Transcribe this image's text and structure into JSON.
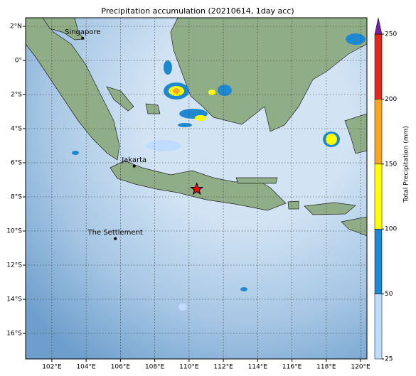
{
  "map": {
    "title": "Precipitation accumulation (20210614, 1day acc)",
    "xlim": [
      100.47,
      120.37
    ],
    "ylim": [
      -17.5,
      2.5
    ],
    "xticks": [
      {
        "value": 102,
        "label": "102°E"
      },
      {
        "value": 104,
        "label": "104°E"
      },
      {
        "value": 106,
        "label": "106°E"
      },
      {
        "value": 108,
        "label": "108°E"
      },
      {
        "value": 110,
        "label": "110°E"
      },
      {
        "value": 112,
        "label": "112°E"
      },
      {
        "value": 114,
        "label": "114°E"
      },
      {
        "value": 116,
        "label": "116°E"
      },
      {
        "value": 118,
        "label": "118°E"
      },
      {
        "value": 120,
        "label": "120°E"
      }
    ],
    "yticks": [
      {
        "value": 2,
        "label": "2°N"
      },
      {
        "value": 0,
        "label": "0°"
      },
      {
        "value": -2,
        "label": "2°S"
      },
      {
        "value": -4,
        "label": "4°S"
      },
      {
        "value": -6,
        "label": "6°S"
      },
      {
        "value": -8,
        "label": "8°S"
      },
      {
        "value": -10,
        "label": "10°S"
      },
      {
        "value": -12,
        "label": "12°S"
      },
      {
        "value": -14,
        "label": "14°S"
      },
      {
        "value": -16,
        "label": "16°S"
      }
    ],
    "places": [
      {
        "name": "Singapore",
        "lon": 103.8,
        "lat": 1.3
      },
      {
        "name": "Jakarta",
        "lon": 106.8,
        "lat": -6.2
      },
      {
        "name": "The Settlement",
        "lon": 105.7,
        "lat": -10.45
      }
    ],
    "marker": {
      "lon": 110.45,
      "lat": -7.55,
      "color": "#ff0000"
    },
    "colorbar": {
      "label": "Total Precipitation (mm)",
      "boundaries": [
        25,
        50,
        100,
        150,
        200,
        250
      ],
      "colors": [
        "#bfdcff",
        "#1e88d0",
        "#ffff00",
        "#f5a623",
        "#e0281e"
      ],
      "extend_color": "#7b1fa2",
      "ticks": [
        25,
        50,
        100,
        150,
        200,
        250
      ]
    }
  }
}
